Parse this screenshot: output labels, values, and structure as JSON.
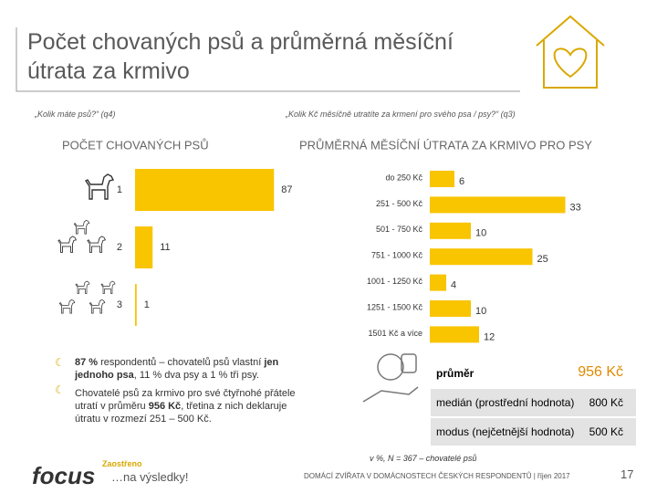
{
  "header": {
    "title_lines": [
      "Počet chovaných psů a průměrná měsíční",
      "útrata za krmivo"
    ]
  },
  "questions": [
    "„Kolik máte psů?“ (q4)",
    "„Kolik Kč měsíčně utratíte za krmení pro svého psa / psy?“ (q3)"
  ],
  "chart_data": [
    {
      "type": "bar",
      "orientation": "horizontal",
      "title": "POČET CHOVANÝCH PSŮ",
      "color": "#f9c400",
      "categories": [
        "1",
        "2",
        "3"
      ],
      "values": [
        87,
        11,
        1
      ]
    },
    {
      "type": "bar",
      "orientation": "horizontal",
      "title": "PRŮMĚRNÁ MĚSÍČNÍ ÚTRATA ZA KRMIVO PRO PSY",
      "color": "#f9c400",
      "categories": [
        "do 250 Kč",
        "251 - 500 Kč",
        "501 - 750 Kč",
        "751 - 1000 Kč",
        "1001 - 1250 Kč",
        "1251 - 1500 Kč",
        "1501 Kč a více"
      ],
      "values": [
        6,
        33,
        10,
        25,
        4,
        10,
        12
      ]
    }
  ],
  "bullets": [
    [
      {
        "text": "87 %",
        "bold": true
      },
      {
        "text": " respondentů – chovatelů psů vlastní ",
        "bold": false
      },
      {
        "text": "jen jednoho psa",
        "bold": true
      },
      {
        "text": ", 11 % dva psy a 1 % tři psy.",
        "bold": false
      }
    ],
    [
      {
        "text": "Chovatelé psů za krmivo pro své čtyřnohé přátele utratí v průměru ",
        "bold": false
      },
      {
        "text": "956 Kč",
        "bold": true
      },
      {
        "text": ", třetina z nich deklaruje útratu v rozmezí 251 – 500 Kč.",
        "bold": false
      }
    ]
  ],
  "stats": {
    "rows": [
      [
        "průměr",
        "956 Kč"
      ],
      [
        "medián (prostřední hodnota)",
        "800 Kč"
      ],
      [
        "modus (nejčetnější hodnota)",
        "500 Kč"
      ]
    ]
  },
  "note": "v %, N = 367 – chovatelé psů",
  "footer": {
    "text": "DOMÁCÍ ZVÍŘATA V DOMÁCNOSTECH ČESKÝCH RESPONDENTŮ | říjen 2017",
    "page": "17"
  },
  "logo": {
    "tag": "Zaostřeno",
    "name": "focus",
    "slogan": "…na výsledky!"
  }
}
